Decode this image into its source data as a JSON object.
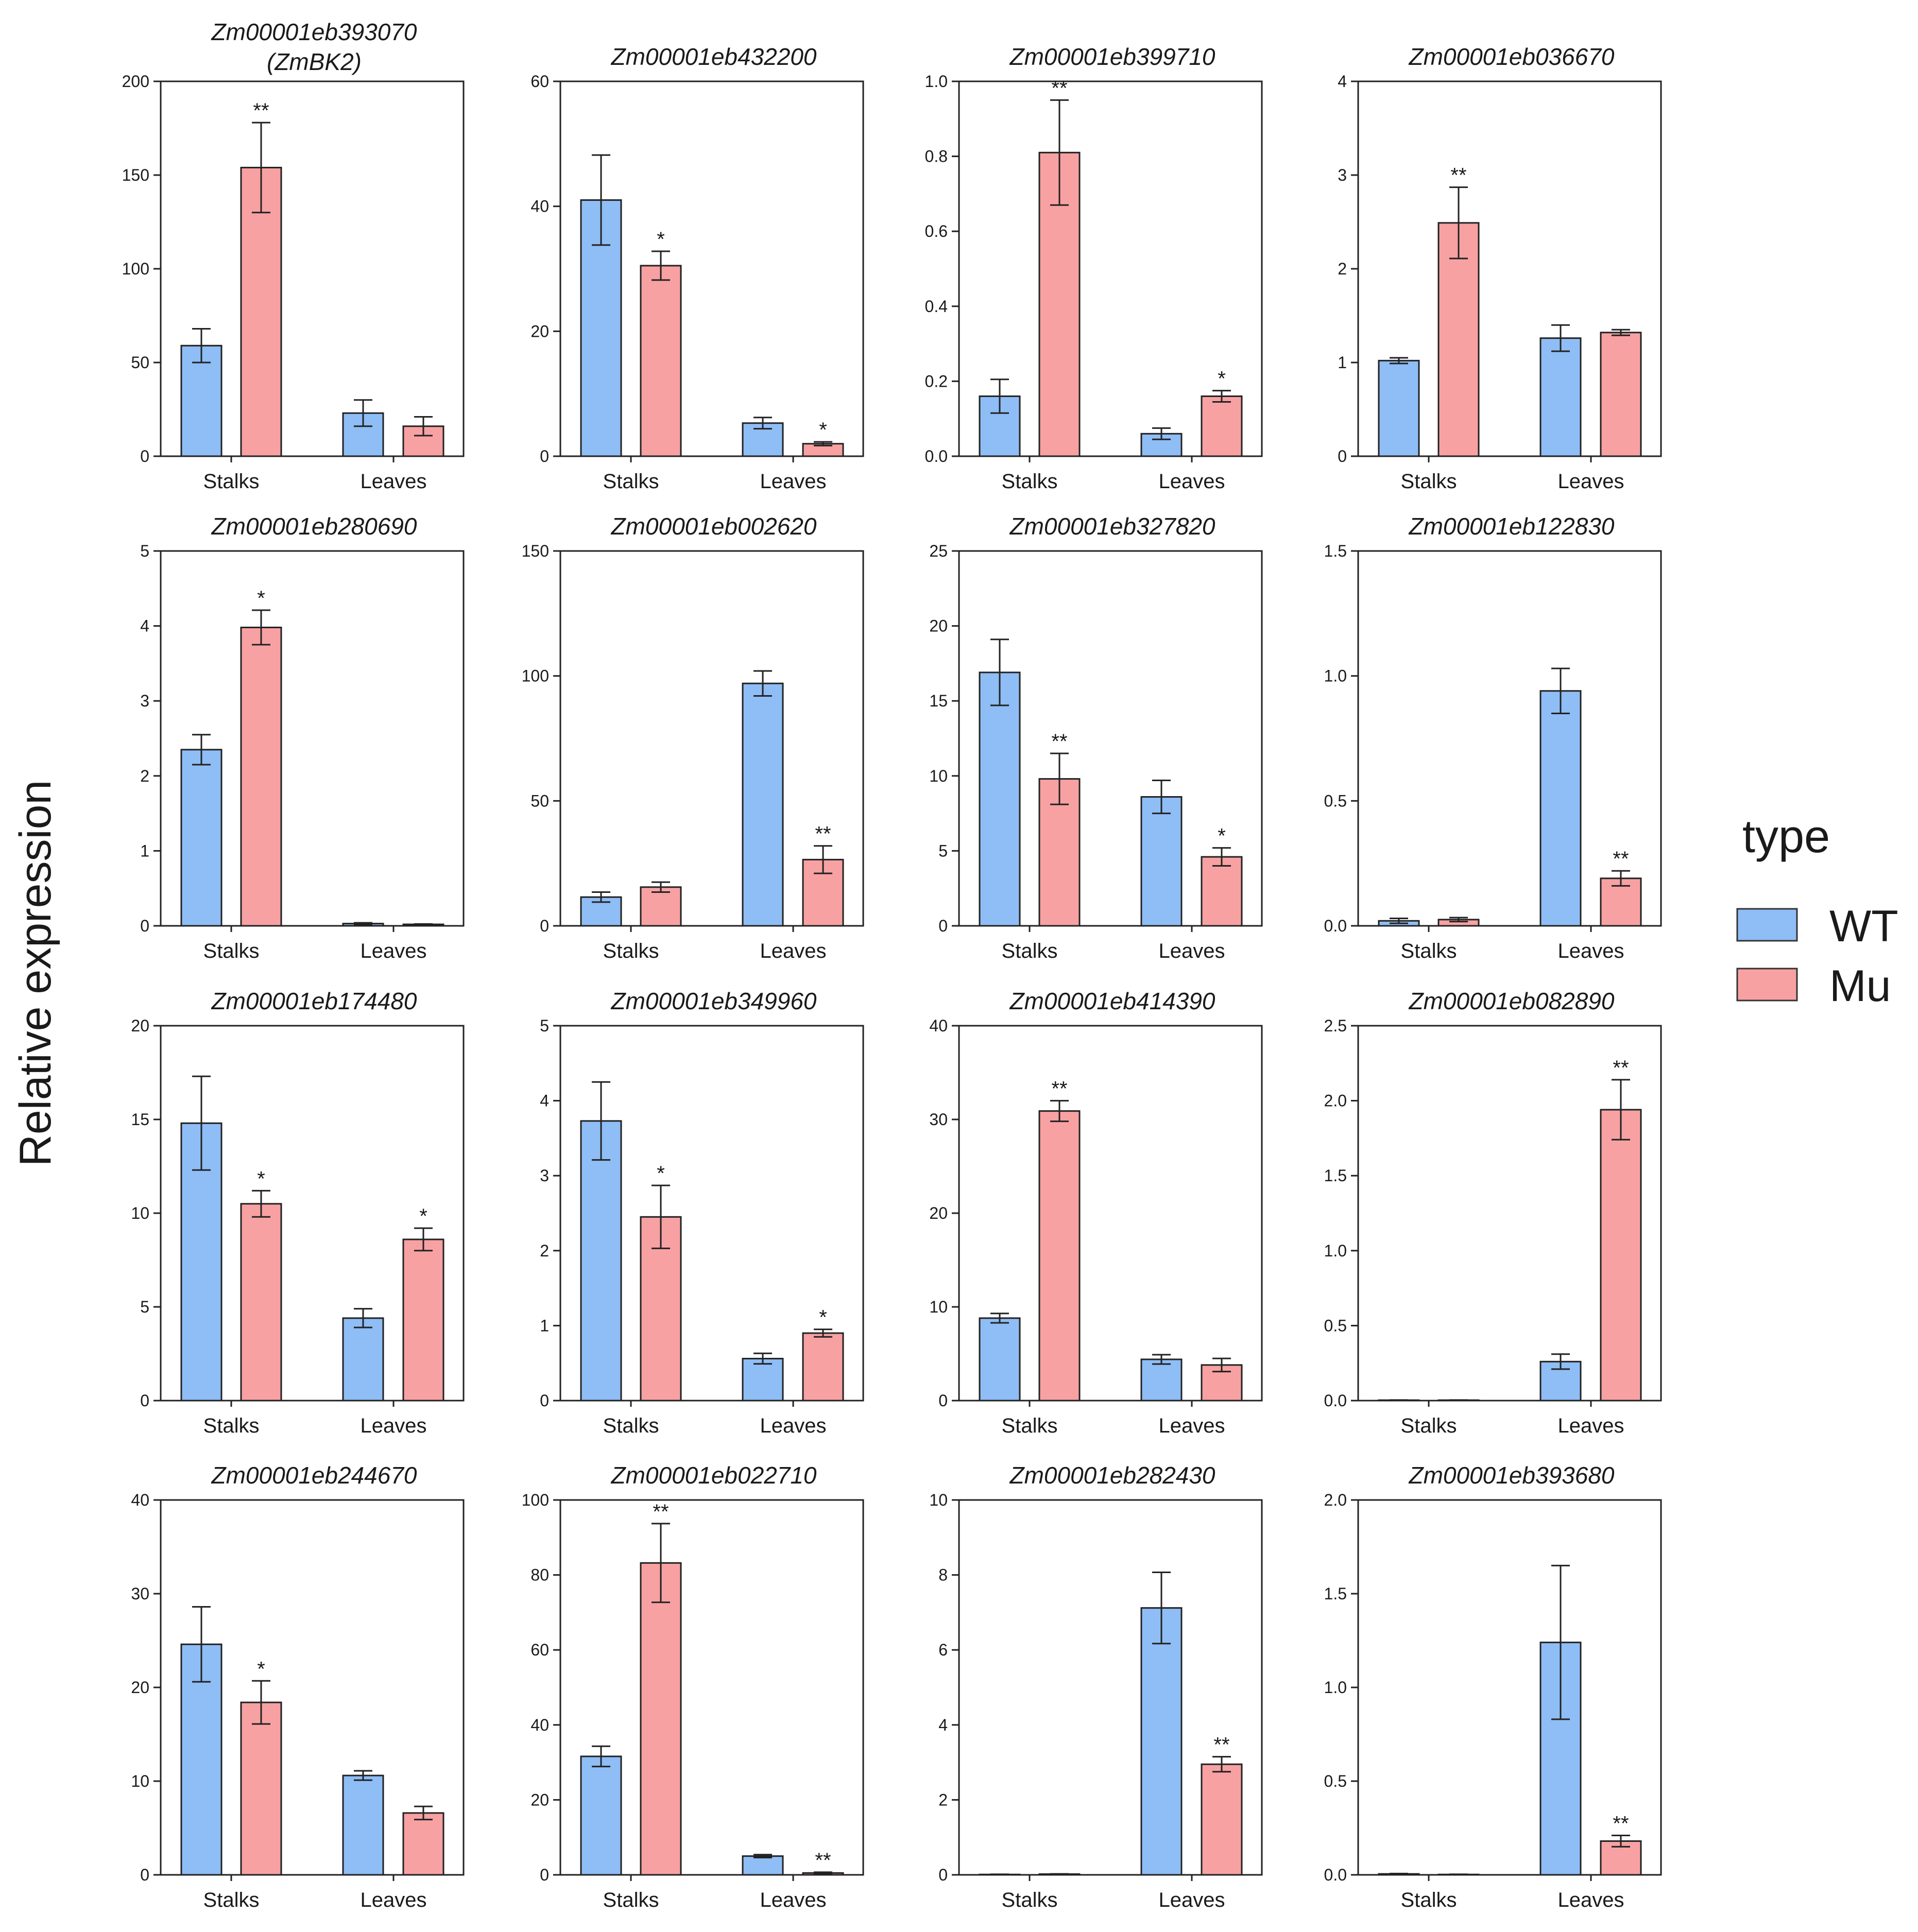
{
  "y_axis_label": "Relative  expression",
  "legend": {
    "title": "type",
    "items": [
      {
        "label": "WT",
        "color": "#8fbdf5"
      },
      {
        "label": "Mu",
        "color": "#f7a1a3"
      }
    ]
  },
  "colors": {
    "wt": "#8fbdf5",
    "mu": "#f7a1a3",
    "axis": "#222222"
  },
  "chart_data": [
    {
      "type": "bar",
      "title": "Zm00001eb393070",
      "subtitle": "(ZmBK2)",
      "categories": [
        "Stalks",
        "Leaves"
      ],
      "ylim": [
        0,
        200
      ],
      "ticks": [
        "0",
        "50",
        "100",
        "150",
        "200"
      ],
      "series": [
        {
          "name": "WT",
          "values": [
            59,
            23
          ],
          "errors": [
            9,
            7
          ]
        },
        {
          "name": "Mu",
          "values": [
            154,
            16
          ],
          "errors": [
            24,
            5
          ]
        }
      ],
      "significance": {
        "Mu": [
          "**",
          ""
        ]
      }
    },
    {
      "type": "bar",
      "title": "Zm00001eb432200",
      "categories": [
        "Stalks",
        "Leaves"
      ],
      "ylim": [
        0,
        60
      ],
      "ticks": [
        "0",
        "20",
        "40",
        "60"
      ],
      "series": [
        {
          "name": "WT",
          "values": [
            41,
            5.3
          ],
          "errors": [
            7.2,
            0.9
          ]
        },
        {
          "name": "Mu",
          "values": [
            30.5,
            2
          ],
          "errors": [
            2.3,
            0.3
          ]
        }
      ],
      "significance": {
        "Mu": [
          "*",
          "*"
        ]
      }
    },
    {
      "type": "bar",
      "title": "Zm00001eb399710",
      "categories": [
        "Stalks",
        "Leaves"
      ],
      "ylim": [
        0,
        1
      ],
      "ticks": [
        "0.0",
        "0.2",
        "0.4",
        "0.6",
        "0.8",
        "1.0"
      ],
      "series": [
        {
          "name": "WT",
          "values": [
            0.16,
            0.06
          ],
          "errors": [
            0.045,
            0.015
          ]
        },
        {
          "name": "Mu",
          "values": [
            0.81,
            0.16
          ],
          "errors": [
            0.14,
            0.015
          ]
        }
      ],
      "significance": {
        "Mu": [
          "**",
          "*"
        ]
      }
    },
    {
      "type": "bar",
      "title": "Zm00001eb036670",
      "categories": [
        "Stalks",
        "Leaves"
      ],
      "ylim": [
        0,
        4
      ],
      "ticks": [
        "0",
        "1",
        "2",
        "3",
        "4"
      ],
      "series": [
        {
          "name": "WT",
          "values": [
            1.02,
            1.26
          ],
          "errors": [
            0.03,
            0.14
          ]
        },
        {
          "name": "Mu",
          "values": [
            2.49,
            1.32
          ],
          "errors": [
            0.38,
            0.03
          ]
        }
      ],
      "significance": {
        "Mu": [
          "**",
          ""
        ]
      }
    },
    {
      "type": "bar",
      "title": "Zm00001eb280690",
      "categories": [
        "Stalks",
        "Leaves"
      ],
      "ylim": [
        0,
        5
      ],
      "ticks": [
        "0",
        "1",
        "2",
        "3",
        "4",
        "5"
      ],
      "series": [
        {
          "name": "WT",
          "values": [
            2.35,
            0.03
          ],
          "errors": [
            0.2,
            0.01
          ]
        },
        {
          "name": "Mu",
          "values": [
            3.98,
            0.02
          ],
          "errors": [
            0.23,
            0.005
          ]
        }
      ],
      "significance": {
        "Mu": [
          "*",
          ""
        ]
      }
    },
    {
      "type": "bar",
      "title": "Zm00001eb002620",
      "categories": [
        "Stalks",
        "Leaves"
      ],
      "ylim": [
        0,
        150
      ],
      "ticks": [
        "0",
        "50",
        "100",
        "150"
      ],
      "series": [
        {
          "name": "WT",
          "values": [
            11.5,
            97
          ],
          "errors": [
            2,
            5
          ]
        },
        {
          "name": "Mu",
          "values": [
            15.5,
            26.5
          ],
          "errors": [
            2,
            5.5
          ]
        }
      ],
      "significance": {
        "Mu": [
          "",
          "**"
        ]
      }
    },
    {
      "type": "bar",
      "title": "Zm00001eb327820",
      "categories": [
        "Stalks",
        "Leaves"
      ],
      "ylim": [
        0,
        25
      ],
      "ticks": [
        "0",
        "5",
        "10",
        "15",
        "20",
        "25"
      ],
      "series": [
        {
          "name": "WT",
          "values": [
            16.9,
            8.6
          ],
          "errors": [
            2.2,
            1.1
          ]
        },
        {
          "name": "Mu",
          "values": [
            9.8,
            4.6
          ],
          "errors": [
            1.7,
            0.6
          ]
        }
      ],
      "significance": {
        "Mu": [
          "**",
          "*"
        ]
      }
    },
    {
      "type": "bar",
      "title": "Zm00001eb122830",
      "categories": [
        "Stalks",
        "Leaves"
      ],
      "ylim": [
        0,
        1.5
      ],
      "ticks": [
        "0.0",
        "0.5",
        "1.0",
        "1.5"
      ],
      "series": [
        {
          "name": "WT",
          "values": [
            0.02,
            0.94
          ],
          "errors": [
            0.01,
            0.09
          ]
        },
        {
          "name": "Mu",
          "values": [
            0.025,
            0.19
          ],
          "errors": [
            0.008,
            0.03
          ]
        }
      ],
      "significance": {
        "Mu": [
          "",
          "**"
        ]
      }
    },
    {
      "type": "bar",
      "title": "Zm00001eb174480",
      "categories": [
        "Stalks",
        "Leaves"
      ],
      "ylim": [
        0,
        20
      ],
      "ticks": [
        "0",
        "5",
        "10",
        "15",
        "20"
      ],
      "series": [
        {
          "name": "WT",
          "values": [
            14.8,
            4.4
          ],
          "errors": [
            2.5,
            0.5
          ]
        },
        {
          "name": "Mu",
          "values": [
            10.5,
            8.6
          ],
          "errors": [
            0.7,
            0.6
          ]
        }
      ],
      "significance": {
        "Mu": [
          "*",
          "*"
        ]
      }
    },
    {
      "type": "bar",
      "title": "Zm00001eb349960",
      "categories": [
        "Stalks",
        "Leaves"
      ],
      "ylim": [
        0,
        5
      ],
      "ticks": [
        "0",
        "1",
        "2",
        "3",
        "4",
        "5"
      ],
      "series": [
        {
          "name": "WT",
          "values": [
            3.73,
            0.56
          ],
          "errors": [
            0.52,
            0.07
          ]
        },
        {
          "name": "Mu",
          "values": [
            2.45,
            0.9
          ],
          "errors": [
            0.42,
            0.05
          ]
        }
      ],
      "significance": {
        "Mu": [
          "*",
          "*"
        ]
      }
    },
    {
      "type": "bar",
      "title": "Zm00001eb414390",
      "categories": [
        "Stalks",
        "Leaves"
      ],
      "ylim": [
        0,
        40
      ],
      "ticks": [
        "0",
        "10",
        "20",
        "30",
        "40"
      ],
      "series": [
        {
          "name": "WT",
          "values": [
            8.8,
            4.4
          ],
          "errors": [
            0.5,
            0.5
          ]
        },
        {
          "name": "Mu",
          "values": [
            30.9,
            3.8
          ],
          "errors": [
            1.1,
            0.7
          ]
        }
      ],
      "significance": {
        "Mu": [
          "**",
          ""
        ]
      }
    },
    {
      "type": "bar",
      "title": "Zm00001eb082890",
      "categories": [
        "Stalks",
        "Leaves"
      ],
      "ylim": [
        0,
        2.5
      ],
      "ticks": [
        "0.0",
        "0.5",
        "1.0",
        "1.5",
        "2.0",
        "2.5"
      ],
      "series": [
        {
          "name": "WT",
          "values": [
            0.003,
            0.26
          ],
          "errors": [
            0.001,
            0.05
          ]
        },
        {
          "name": "Mu",
          "values": [
            0.003,
            1.94
          ],
          "errors": [
            0.001,
            0.2
          ]
        }
      ],
      "significance": {
        "Mu": [
          "",
          "**"
        ]
      }
    },
    {
      "type": "bar",
      "title": "Zm00001eb244670",
      "categories": [
        "Stalks",
        "Leaves"
      ],
      "ylim": [
        0,
        40
      ],
      "ticks": [
        "0",
        "10",
        "20",
        "30",
        "40"
      ],
      "series": [
        {
          "name": "WT",
          "values": [
            24.6,
            10.6
          ],
          "errors": [
            4,
            0.5
          ]
        },
        {
          "name": "Mu",
          "values": [
            18.4,
            6.6
          ],
          "errors": [
            2.3,
            0.7
          ]
        }
      ],
      "significance": {
        "Mu": [
          "*",
          ""
        ]
      }
    },
    {
      "type": "bar",
      "title": "Zm00001eb022710",
      "categories": [
        "Stalks",
        "Leaves"
      ],
      "ylim": [
        0,
        100
      ],
      "ticks": [
        "0",
        "20",
        "40",
        "60",
        "80",
        "100"
      ],
      "series": [
        {
          "name": "WT",
          "values": [
            31.6,
            5
          ],
          "errors": [
            2.7,
            0.4
          ]
        },
        {
          "name": "Mu",
          "values": [
            83.2,
            0.5
          ],
          "errors": [
            10.5,
            0.2
          ]
        }
      ],
      "significance": {
        "Mu": [
          "**",
          "**"
        ]
      }
    },
    {
      "type": "bar",
      "title": "Zm00001eb282430",
      "categories": [
        "Stalks",
        "Leaves"
      ],
      "ylim": [
        0,
        10
      ],
      "ticks": [
        "0",
        "2",
        "4",
        "6",
        "8",
        "10"
      ],
      "series": [
        {
          "name": "WT",
          "values": [
            0.01,
            7.12
          ],
          "errors": [
            0.005,
            0.95
          ]
        },
        {
          "name": "Mu",
          "values": [
            0.02,
            2.95
          ],
          "errors": [
            0.005,
            0.2
          ]
        }
      ],
      "significance": {
        "Mu": [
          "",
          "**"
        ]
      }
    },
    {
      "type": "bar",
      "title": "Zm00001eb393680",
      "categories": [
        "Stalks",
        "Leaves"
      ],
      "ylim": [
        0,
        2
      ],
      "ticks": [
        "0.0",
        "0.5",
        "1.0",
        "1.5",
        "2.0"
      ],
      "series": [
        {
          "name": "WT",
          "values": [
            0.005,
            1.24
          ],
          "errors": [
            0.002,
            0.41
          ]
        },
        {
          "name": "Mu",
          "values": [
            0.002,
            0.18
          ],
          "errors": [
            0.001,
            0.03
          ]
        }
      ],
      "significance": {
        "Mu": [
          "",
          "**"
        ]
      }
    }
  ]
}
